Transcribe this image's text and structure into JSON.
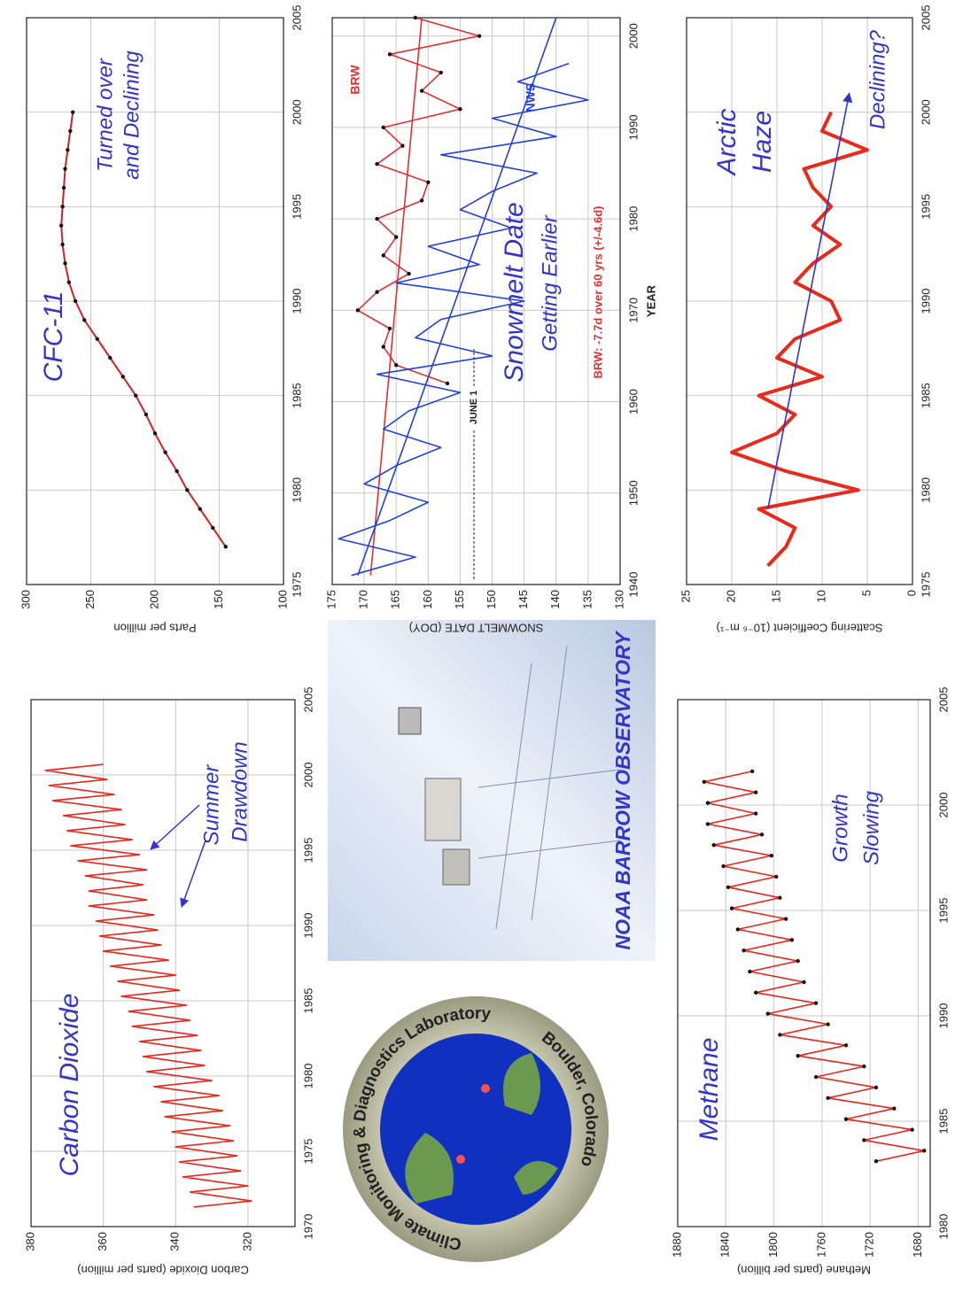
{
  "chart_data": [
    {
      "type": "line",
      "title": "Carbon Dioxide",
      "annotations": [
        "Summer",
        "Drawdown"
      ],
      "ylabel": "Carbon Dioxide (parts per million)",
      "x": [
        1971.3,
        1971.7,
        1972.3,
        1972.7,
        1973.3,
        1973.7,
        1974.3,
        1974.7,
        1975.3,
        1975.7,
        1976.3,
        1976.7,
        1977.3,
        1977.7,
        1978.3,
        1978.7,
        1979.3,
        1979.7,
        1980.3,
        1980.7,
        1981.3,
        1981.7,
        1982.3,
        1982.7,
        1983.3,
        1983.7,
        1984.3,
        1984.7,
        1985.3,
        1985.7,
        1986.3,
        1986.7,
        1987.3,
        1987.7,
        1988.3,
        1988.7,
        1989.3,
        1989.7,
        1990.3,
        1990.7,
        1991.3,
        1991.7,
        1992.3,
        1992.7,
        1993.3,
        1993.7,
        1994.3,
        1994.7,
        1995.3,
        1995.7,
        1996.3,
        1996.7,
        1997.3,
        1997.7,
        1998.3,
        1998.7,
        1999.3,
        1999.7,
        2000.3,
        2000.7
      ],
      "series": [
        {
          "color": "#e8261c",
          "width": 1.6,
          "values": [
            335,
            319,
            336,
            320,
            338,
            322,
            339,
            323,
            340,
            324,
            341,
            325,
            343,
            327,
            344,
            328,
            346,
            330,
            348,
            332,
            349,
            333,
            350,
            334,
            352,
            336,
            353,
            337,
            355,
            339,
            356,
            340,
            358,
            342,
            360,
            344,
            361,
            345,
            362,
            346,
            364,
            348,
            364,
            349,
            365,
            348,
            367,
            350,
            369,
            352,
            370,
            354,
            371,
            355,
            374,
            357,
            375,
            359,
            376,
            360
          ]
        }
      ],
      "xlim": [
        1970,
        2005
      ],
      "ylim": [
        307,
        380
      ],
      "xticks": [
        1970,
        1975,
        1980,
        1985,
        1990,
        1995,
        2000,
        2005
      ],
      "yticks": [
        320,
        340,
        360,
        380
      ],
      "grid": true
    },
    {
      "type": "line",
      "title": "CFC-11",
      "annotations": [
        "Turned over",
        "and Declining"
      ],
      "ylabel": "Parts per million",
      "x": [
        1977,
        1978,
        1979,
        1980,
        1981,
        1982,
        1983,
        1984,
        1985,
        1986,
        1987,
        1988,
        1989,
        1990,
        1991,
        1992,
        1993,
        1994,
        1995,
        1996,
        1997,
        1998,
        1999,
        2000
      ],
      "series": [
        {
          "color": "#d42020",
          "width": 2,
          "marker_color": "#111111",
          "values": [
            145,
            155,
            165,
            175,
            183,
            192,
            200,
            207,
            215,
            225,
            235,
            245,
            255,
            262,
            267,
            270,
            272,
            273,
            272,
            271,
            270,
            268,
            266,
            264
          ]
        }
      ],
      "xlim": [
        1975,
        2005
      ],
      "ylim": [
        100,
        300
      ],
      "xticks": [
        1975,
        1980,
        1985,
        1990,
        1995,
        2000,
        2005
      ],
      "yticks": [
        100,
        150,
        200,
        250,
        300
      ],
      "grid": true
    },
    {
      "type": "line",
      "title": "Snowmelt Date",
      "annotations": [
        "Getting Earlier",
        "JUNE 1",
        "BRW: -7.7d over 60 yrs (+/-4.6d)"
      ],
      "ylabel": "SNOWMELT DATE (DOY)",
      "xlabel": "YEAR",
      "series": [
        {
          "name": "BRW",
          "color": "#e03030",
          "width": 1.6,
          "marker_color": "#111111",
          "x": [
            1962,
            1964,
            1966,
            1968,
            1970,
            1972,
            1974,
            1976,
            1978,
            1980,
            1982,
            1984,
            1986,
            1988,
            1990,
            1992,
            1994,
            1996,
            1998,
            2000,
            2002
          ],
          "values": [
            157,
            165,
            167,
            166,
            171,
            168,
            163,
            167,
            165,
            168,
            161,
            160,
            168,
            164,
            167,
            155,
            161,
            158,
            166,
            152,
            162
          ],
          "trend": {
            "x": [
              1941,
              2002
            ],
            "values": [
              169,
              161
            ]
          }
        },
        {
          "name": "NWS",
          "color": "#2040e0",
          "width": 1.6,
          "x": [
            1941,
            1943,
            1945,
            1947,
            1949,
            1951,
            1953,
            1955,
            1957,
            1959,
            1961,
            1963,
            1965,
            1967,
            1969,
            1971,
            1973,
            1975,
            1977,
            1979,
            1981,
            1983,
            1985,
            1987,
            1989,
            1991,
            1993,
            1995,
            1997
          ],
          "values": [
            172,
            162,
            174,
            166,
            160,
            170,
            165,
            158,
            167,
            163,
            155,
            168,
            150,
            162,
            158,
            145,
            165,
            152,
            160,
            147,
            155,
            150,
            143,
            158,
            140,
            150,
            135,
            146,
            138
          ],
          "trend": {
            "x": [
              1941,
              2002
            ],
            "values": [
              171,
              140
            ]
          }
        }
      ],
      "xlim": [
        1940,
        2002
      ],
      "ylim": [
        130,
        175
      ],
      "xticks": [
        1940,
        1950,
        1960,
        1970,
        1980,
        1990,
        2000
      ],
      "yticks": [
        130,
        135,
        140,
        145,
        150,
        155,
        160,
        165,
        170,
        175
      ],
      "grid": true
    },
    {
      "type": "line",
      "title": "Arctic",
      "annotations": [
        "Haze",
        "Declining?"
      ],
      "ylabel": "Scattering Coefficient (10⁻⁶ m⁻¹)",
      "x": [
        1976,
        1977,
        1978,
        1979,
        1980,
        1981,
        1982,
        1983,
        1984,
        1985,
        1986,
        1987,
        1988,
        1989,
        1990,
        1991,
        1992,
        1993,
        1994,
        1995,
        1996,
        1997,
        1998,
        1999,
        2000
      ],
      "series": [
        {
          "color": "#e82a1a",
          "width": 4,
          "values": [
            16,
            14,
            13,
            17,
            6,
            14,
            20,
            15,
            13,
            17,
            10,
            15,
            13,
            8,
            9,
            13,
            11,
            8,
            11,
            9,
            11,
            12,
            5,
            10,
            9
          ],
          "trend": {
            "x": [
              1979,
              2001
            ],
            "values": [
              16,
              7
            ]
          }
        }
      ],
      "xlim": [
        1975,
        2005
      ],
      "ylim": [
        0,
        25
      ],
      "xticks": [
        1975,
        1980,
        1985,
        1990,
        1995,
        2000,
        2005
      ],
      "yticks": [
        0,
        5,
        10,
        15,
        20,
        25
      ],
      "grid": true
    },
    {
      "type": "line",
      "title": "Methane",
      "annotations": [
        "Growth",
        "Slowing"
      ],
      "ylabel": "Methane (parts per billion)",
      "x": [
        1983.1,
        1983.6,
        1984.1,
        1984.6,
        1985.1,
        1985.6,
        1986.1,
        1986.6,
        1987.1,
        1987.6,
        1988.1,
        1988.6,
        1989.1,
        1989.6,
        1990.1,
        1990.6,
        1991.1,
        1991.6,
        1992.1,
        1992.6,
        1993.1,
        1993.6,
        1994.1,
        1994.6,
        1995.1,
        1995.6,
        1996.1,
        1996.6,
        1997.1,
        1997.6,
        1998.1,
        1998.6,
        1999.1,
        1999.6,
        2000.1,
        2000.6,
        2001.1,
        2001.6
      ],
      "series": [
        {
          "color": "#e8261c",
          "width": 1.6,
          "marker_color": "#111111",
          "values": [
            1715,
            1675,
            1725,
            1685,
            1740,
            1700,
            1755,
            1715,
            1765,
            1725,
            1780,
            1740,
            1795,
            1755,
            1805,
            1765,
            1815,
            1775,
            1820,
            1780,
            1825,
            1785,
            1830,
            1790,
            1835,
            1795,
            1838,
            1798,
            1842,
            1802,
            1850,
            1810,
            1855,
            1815,
            1855,
            1815,
            1858,
            1818
          ]
        }
      ],
      "xlim": [
        1980,
        2005
      ],
      "ylim": [
        1670,
        1880
      ],
      "xticks": [
        1980,
        1985,
        1990,
        1995,
        2000,
        2005
      ],
      "yticks": [
        1680,
        1720,
        1760,
        1800,
        1840,
        1880
      ],
      "grid": true
    }
  ],
  "photo": {
    "caption": "NOAA BARROW OBSERVATORY"
  },
  "logo": {
    "name": "Climate Monitoring & Diagnostics Laboratory",
    "location": "Boulder, Colorado"
  }
}
